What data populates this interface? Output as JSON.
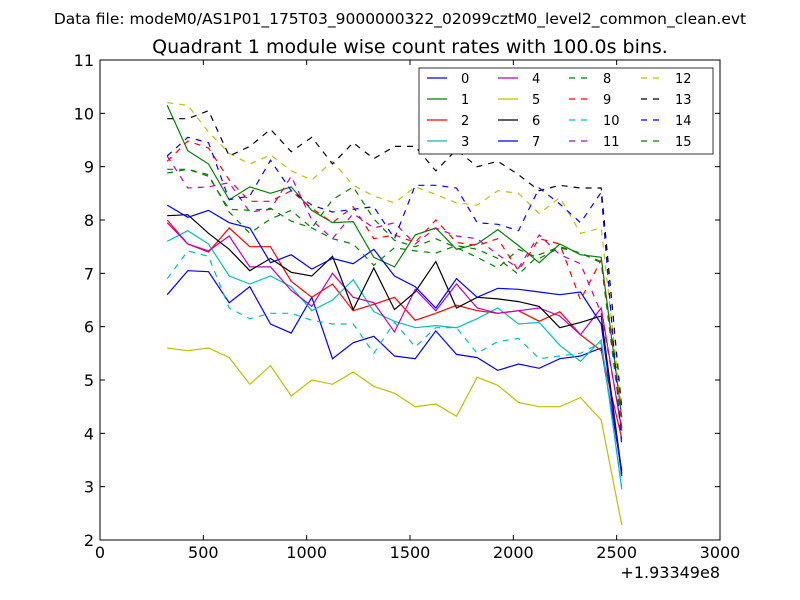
{
  "chart_data": {
    "type": "line",
    "title": "Quadrant 1 module wise count rates with 100.0s bins.",
    "suptitle": "Data file: modeM0/AS1P01_175T03_9000000322_02099cztM0_level2_common_clean.evt",
    "xlabel": "",
    "ylabel": "",
    "x_offset_label": "+1.93349e8",
    "xlim": [
      0,
      3000
    ],
    "ylim": [
      2,
      11
    ],
    "xticks": [
      0,
      500,
      1000,
      1500,
      2000,
      2500,
      3000
    ],
    "xtick_labels": [
      "0",
      "500",
      "1000",
      "1500",
      "2000",
      "2500",
      "3000"
    ],
    "yticks": [
      2,
      3,
      4,
      5,
      6,
      7,
      8,
      9,
      10,
      11
    ],
    "ytick_labels": [
      "2",
      "3",
      "4",
      "5",
      "6",
      "7",
      "8",
      "9",
      "10",
      "11"
    ],
    "grid": false,
    "legend_position": "top-right",
    "legend_columns": 4,
    "x": [
      325,
      425,
      525,
      625,
      725,
      825,
      925,
      1025,
      1125,
      1225,
      1325,
      1425,
      1525,
      1625,
      1725,
      1825,
      1925,
      2025,
      2125,
      2225,
      2325,
      2425,
      2525
    ],
    "series": [
      {
        "name": "0",
        "color": "#0000ff",
        "dash": "solid",
        "values": [
          6.6,
          7.05,
          7.03,
          6.45,
          6.75,
          6.05,
          5.88,
          6.55,
          5.4,
          5.7,
          5.82,
          5.45,
          5.4,
          5.92,
          5.48,
          5.42,
          5.18,
          5.3,
          5.22,
          5.4,
          5.45,
          5.6,
          3.3
        ]
      },
      {
        "name": "1",
        "color": "#008000",
        "dash": "solid",
        "values": [
          10.15,
          9.3,
          9.05,
          8.38,
          8.62,
          8.5,
          8.62,
          8.18,
          7.95,
          7.97,
          7.3,
          7.12,
          7.72,
          7.85,
          7.45,
          7.55,
          7.82,
          7.52,
          7.2,
          7.55,
          7.35,
          7.3,
          4.3
        ]
      },
      {
        "name": "2",
        "color": "#ff0000",
        "dash": "solid",
        "values": [
          8.0,
          7.55,
          7.4,
          7.85,
          7.5,
          7.5,
          6.85,
          6.55,
          6.8,
          6.3,
          6.42,
          6.55,
          6.12,
          6.25,
          6.4,
          6.3,
          6.25,
          6.3,
          6.1,
          6.28,
          5.85,
          5.55,
          3.9
        ]
      },
      {
        "name": "3",
        "color": "#00bfbf",
        "dash": "solid",
        "values": [
          7.6,
          7.8,
          7.55,
          6.95,
          6.8,
          6.95,
          6.75,
          6.3,
          6.5,
          6.88,
          6.28,
          6.1,
          5.98,
          6.02,
          5.98,
          6.15,
          6.35,
          6.05,
          6.08,
          5.65,
          5.35,
          5.75,
          2.95
        ]
      },
      {
        "name": "4",
        "color": "#bf00bf",
        "dash": "solid",
        "values": [
          7.95,
          7.55,
          7.42,
          7.7,
          7.12,
          7.12,
          6.68,
          6.38,
          7.0,
          6.55,
          6.45,
          5.9,
          6.7,
          6.3,
          6.8,
          6.35,
          6.25,
          6.3,
          6.35,
          6.2,
          5.85,
          6.35,
          4.05
        ]
      },
      {
        "name": "5",
        "color": "#bfbf00",
        "dash": "solid",
        "values": [
          5.6,
          5.55,
          5.6,
          5.42,
          4.92,
          5.27,
          4.7,
          5.0,
          4.92,
          5.15,
          4.88,
          4.75,
          4.5,
          4.55,
          4.32,
          5.05,
          4.9,
          4.58,
          4.5,
          4.5,
          4.67,
          4.25,
          2.28
        ]
      },
      {
        "name": "6",
        "color": "#000000",
        "dash": "solid",
        "values": [
          8.08,
          8.1,
          7.75,
          7.45,
          7.05,
          7.28,
          7.02,
          6.95,
          7.32,
          6.32,
          7.1,
          6.32,
          6.65,
          7.22,
          6.35,
          6.55,
          6.52,
          6.47,
          6.38,
          5.98,
          6.08,
          6.2,
          3.25
        ]
      },
      {
        "name": "7",
        "color": "#0000ff",
        "dash": "solid",
        "values": [
          8.28,
          8.05,
          8.18,
          7.95,
          7.85,
          7.2,
          7.35,
          7.08,
          7.28,
          7.18,
          7.45,
          6.95,
          6.75,
          6.35,
          6.9,
          6.55,
          6.72,
          6.7,
          6.65,
          6.6,
          6.65,
          6.05,
          3.2
        ]
      },
      {
        "name": "8",
        "color": "#008000",
        "dash": "dashed",
        "values": [
          8.88,
          8.95,
          8.85,
          8.15,
          7.75,
          8.02,
          8.18,
          7.85,
          8.38,
          8.62,
          8.02,
          7.62,
          7.5,
          7.65,
          7.48,
          7.3,
          7.1,
          7.45,
          7.28,
          7.48,
          7.38,
          7.22,
          4.5
        ]
      },
      {
        "name": "9",
        "color": "#ff0000",
        "dash": "dashed",
        "values": [
          9.1,
          9.48,
          9.35,
          8.75,
          8.35,
          8.35,
          8.55,
          8.22,
          7.95,
          8.25,
          7.65,
          7.72,
          7.58,
          8.0,
          7.58,
          7.52,
          7.65,
          7.05,
          7.65,
          7.55,
          6.5,
          7.25,
          4.25
        ]
      },
      {
        "name": "10",
        "color": "#00bfbf",
        "dash": "dashed",
        "values": [
          6.9,
          7.42,
          7.32,
          6.35,
          6.15,
          6.25,
          6.25,
          6.12,
          6.05,
          6.05,
          5.5,
          6.08,
          5.62,
          5.98,
          5.98,
          5.5,
          5.72,
          5.78,
          5.4,
          5.45,
          5.5,
          5.7,
          3.0
        ]
      },
      {
        "name": "11",
        "color": "#bf00bf",
        "dash": "dashed",
        "values": [
          9.2,
          8.6,
          8.62,
          8.7,
          8.15,
          8.2,
          8.82,
          8.0,
          7.65,
          8.12,
          7.85,
          7.95,
          7.55,
          7.85,
          7.7,
          7.65,
          7.35,
          7.1,
          7.72,
          7.35,
          7.18,
          6.25,
          4.1
        ]
      },
      {
        "name": "12",
        "color": "#bfbf00",
        "dash": "dashed",
        "values": [
          10.2,
          10.15,
          9.65,
          9.25,
          9.05,
          9.22,
          8.92,
          8.75,
          9.1,
          8.65,
          8.45,
          8.32,
          8.62,
          8.48,
          8.32,
          8.28,
          8.55,
          8.5,
          8.12,
          8.42,
          7.75,
          7.85,
          4.4
        ]
      },
      {
        "name": "13",
        "color": "#000000",
        "dash": "dashed",
        "values": [
          9.9,
          9.9,
          10.05,
          9.2,
          9.38,
          9.7,
          9.28,
          9.55,
          9.05,
          9.45,
          9.15,
          9.38,
          9.38,
          8.92,
          9.32,
          9.0,
          9.1,
          8.85,
          8.55,
          8.65,
          8.6,
          8.6,
          4.45
        ]
      },
      {
        "name": "14",
        "color": "#0000ff",
        "dash": "dashed",
        "values": [
          9.2,
          9.55,
          9.45,
          8.38,
          8.45,
          9.12,
          8.55,
          8.28,
          8.15,
          8.2,
          8.25,
          7.65,
          8.65,
          8.65,
          8.6,
          7.95,
          7.92,
          7.8,
          8.6,
          8.3,
          7.95,
          8.52,
          3.75
        ]
      },
      {
        "name": "15",
        "color": "#008000",
        "dash": "dashed",
        "values": [
          8.95,
          8.95,
          8.82,
          8.2,
          8.18,
          8.22,
          7.98,
          7.85,
          7.65,
          7.55,
          7.15,
          7.48,
          7.42,
          7.38,
          7.52,
          7.45,
          7.28,
          6.98,
          7.35,
          7.5,
          7.38,
          7.2,
          4.1
        ]
      }
    ]
  }
}
